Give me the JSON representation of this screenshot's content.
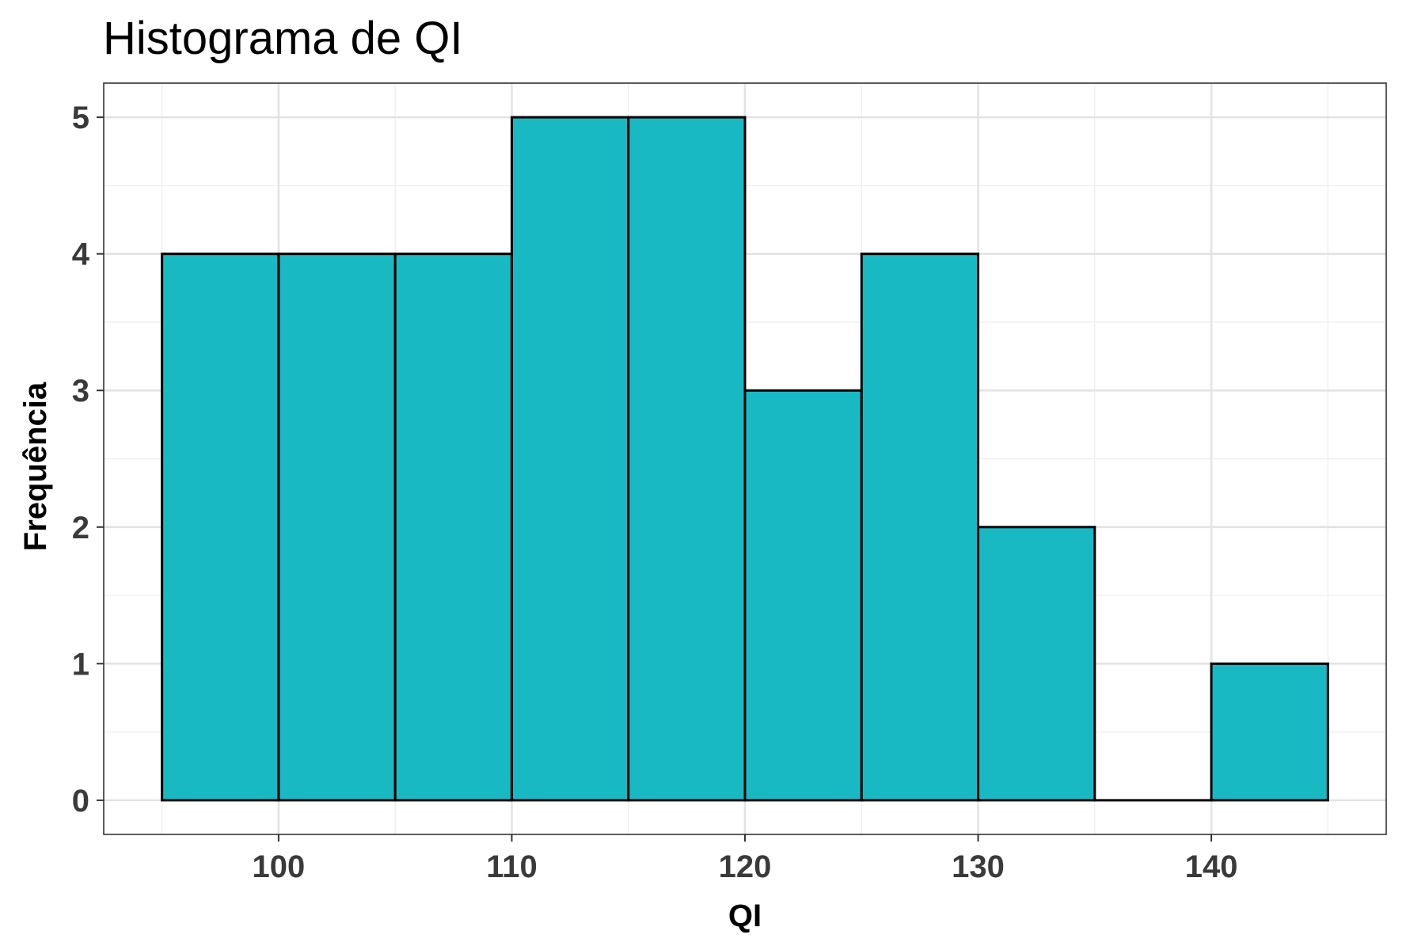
{
  "chart_data": {
    "type": "bar",
    "subtype": "histogram",
    "title": "Histograma de QI",
    "xlabel": "QI",
    "ylabel": "Frequência",
    "bin_width": 5,
    "bins": [
      {
        "start": 95,
        "end": 100,
        "count": 4
      },
      {
        "start": 100,
        "end": 105,
        "count": 4
      },
      {
        "start": 105,
        "end": 110,
        "count": 4
      },
      {
        "start": 110,
        "end": 115,
        "count": 5
      },
      {
        "start": 115,
        "end": 120,
        "count": 5
      },
      {
        "start": 120,
        "end": 125,
        "count": 3
      },
      {
        "start": 125,
        "end": 130,
        "count": 4
      },
      {
        "start": 130,
        "end": 135,
        "count": 2
      },
      {
        "start": 135,
        "end": 140,
        "count": 0
      },
      {
        "start": 140,
        "end": 145,
        "count": 1
      }
    ],
    "xlim": [
      92.5,
      147.5
    ],
    "ylim": [
      -0.25,
      5.25
    ],
    "x_ticks": [
      100,
      110,
      120,
      130,
      140
    ],
    "y_ticks": [
      0,
      1,
      2,
      3,
      4,
      5
    ],
    "grid": true,
    "legend": "none",
    "colors": {
      "bar_fill": "#19b9c3",
      "bar_outline": "#000000"
    }
  }
}
